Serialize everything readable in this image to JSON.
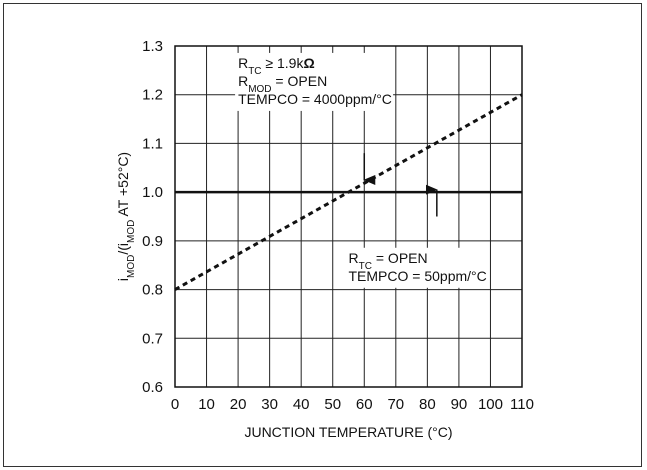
{
  "chart_data": {
    "type": "line",
    "title": "",
    "xlabel": "JUNCTION TEMPERATURE (°C)",
    "ylabel": {
      "parts": [
        {
          "text": "i",
          "sub": false
        },
        {
          "text": "MOD",
          "sub": true
        },
        {
          "text": "/(i",
          "sub": false
        },
        {
          "text": "MOD",
          "sub": true
        },
        {
          "text": " AT +52°C)",
          "sub": false
        }
      ]
    },
    "xlim": [
      0,
      110
    ],
    "ylim": [
      0.6,
      1.3
    ],
    "xticks": [
      0,
      10,
      20,
      30,
      40,
      50,
      60,
      70,
      80,
      90,
      100,
      110
    ],
    "yticks": [
      0.6,
      0.7,
      0.8,
      0.9,
      1.0,
      1.1,
      1.2,
      1.3
    ],
    "xtick_labels": [
      "0",
      "10",
      "20",
      "30",
      "40",
      "50",
      "60",
      "70",
      "80",
      "90",
      "100",
      "110"
    ],
    "ytick_labels": [
      "0.6",
      "0.7",
      "0.8",
      "0.9",
      "1.0",
      "1.1",
      "1.2",
      "1.3"
    ],
    "grid": true,
    "series": [
      {
        "x": [
          0,
          110
        ],
        "y": [
          0.8,
          1.2
        ],
        "style": "dashed",
        "color": "#111111"
      },
      {
        "x": [
          0,
          110
        ],
        "y": [
          1.0,
          1.0
        ],
        "style": "solid",
        "color": "#111111"
      }
    ],
    "annotations": [
      {
        "lines": [
          [
            {
              "text": "R",
              "sub": false
            },
            {
              "text": "TC",
              "sub": true
            },
            {
              "text": " ≥ 1.9k",
              "sub": false
            },
            {
              "text": "Ω",
              "sub": false,
              "bold": true
            }
          ],
          [
            {
              "text": "R",
              "sub": false
            },
            {
              "text": "MOD",
              "sub": true
            },
            {
              "text": " = OPEN",
              "sub": false
            }
          ],
          [
            {
              "text": "TEMPCO = 4000ppm/°C",
              "sub": false
            }
          ]
        ],
        "x": 20,
        "y": 1.255,
        "arrow": {
          "from": [
            60,
            1.08
          ],
          "to": [
            60,
            1.025
          ]
        }
      },
      {
        "lines": [
          [
            {
              "text": "R",
              "sub": false
            },
            {
              "text": "TC",
              "sub": true
            },
            {
              "text": " = OPEN",
              "sub": false
            }
          ],
          [
            {
              "text": "TEMPCO = 50ppm/°C",
              "sub": false
            }
          ]
        ],
        "x": 55,
        "y": 0.855,
        "arrow": {
          "from": [
            83,
            0.95
          ],
          "to": [
            83,
            1.005
          ]
        }
      }
    ]
  }
}
